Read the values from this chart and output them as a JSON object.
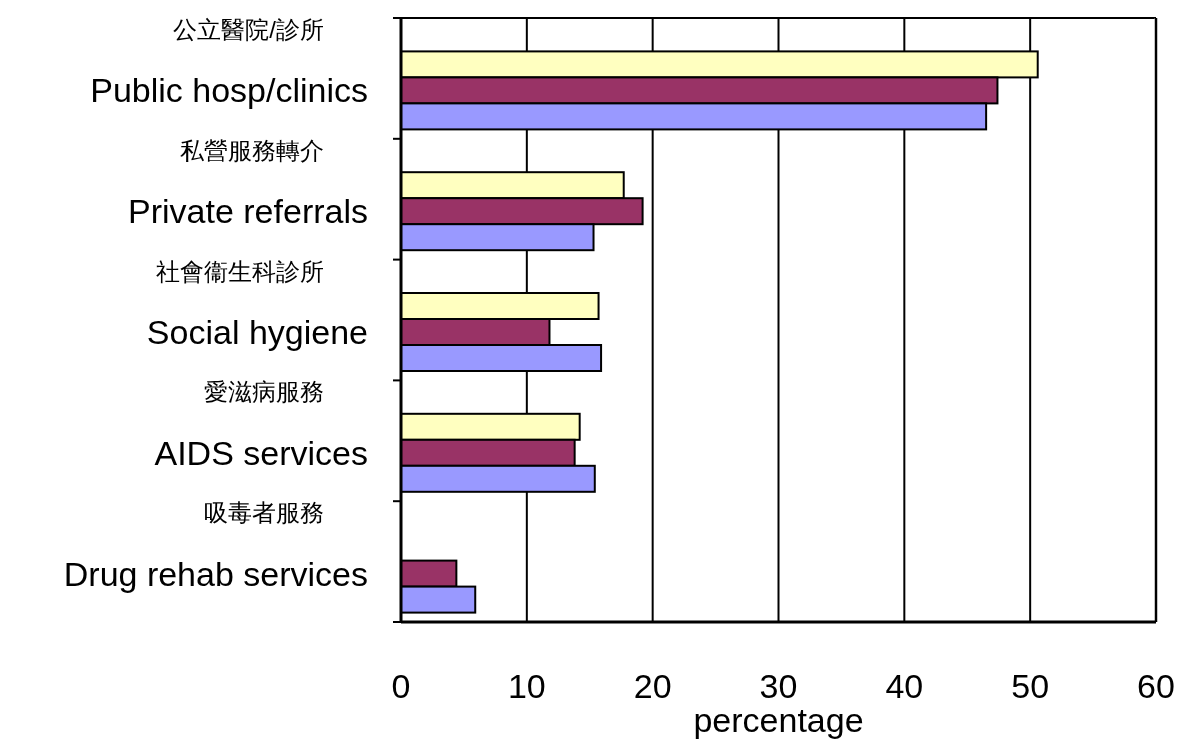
{
  "chart_data": {
    "type": "bar",
    "orientation": "horizontal",
    "xlabel": "percentage",
    "categories": [
      "公立醫院/診所\nPublic hosp/clinics",
      "私營服務轉介\nPrivate referrals",
      "社會衞生科診所\nSocial hygiene",
      "愛滋病服務\nAIDS services",
      "吸毒者服務\nDrug rehab services"
    ],
    "series": [
      {
        "color": "#ffffc0",
        "values": [
          50.6,
          17.7,
          15.7,
          14.2,
          null
        ]
      },
      {
        "color": "#993366",
        "values": [
          47.4,
          19.2,
          11.8,
          13.8,
          4.4
        ]
      },
      {
        "color": "#9999ff",
        "values": [
          46.5,
          15.3,
          15.9,
          15.4,
          5.9
        ]
      }
    ],
    "xlim": [
      0,
      60
    ],
    "xticks": [
      0,
      10,
      20,
      30,
      40,
      50,
      60
    ],
    "grid": "x"
  }
}
